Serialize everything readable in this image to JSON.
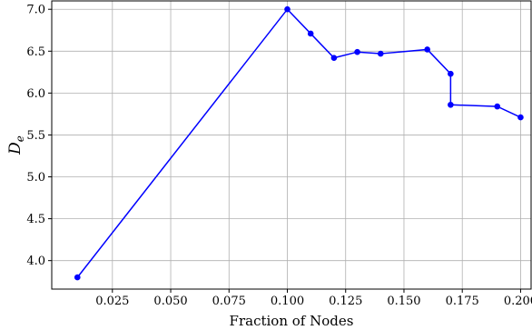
{
  "chart_data": {
    "type": "line",
    "xlabel": "Fraction of Nodes",
    "ylabel": "D",
    "ylabel_subscript": "e",
    "xlim": [
      -0.001,
      0.2045
    ],
    "ylim": [
      3.66,
      7.1
    ],
    "grid": true,
    "x_ticks": [
      0.025,
      0.05,
      0.075,
      0.1,
      0.125,
      0.15,
      0.175,
      0.2
    ],
    "x_tick_labels": [
      "0.025",
      "0.050",
      "0.075",
      "0.100",
      "0.125",
      "0.150",
      "0.175",
      "0.200"
    ],
    "y_ticks": [
      4.0,
      4.5,
      5.0,
      5.5,
      6.0,
      6.5,
      7.0
    ],
    "y_tick_labels": [
      "4.0",
      "4.5",
      "5.0",
      "5.5",
      "6.0",
      "6.5",
      "7.0"
    ],
    "color": "#0000ff",
    "series": [
      {
        "x": [
          0.01,
          0.1,
          0.11,
          0.12,
          0.13,
          0.14,
          0.16,
          0.17,
          0.17,
          0.19,
          0.2
        ],
        "y": [
          3.8,
          7.0,
          6.71,
          6.42,
          6.49,
          6.47,
          6.52,
          6.23,
          5.86,
          5.84,
          5.71
        ]
      }
    ]
  }
}
